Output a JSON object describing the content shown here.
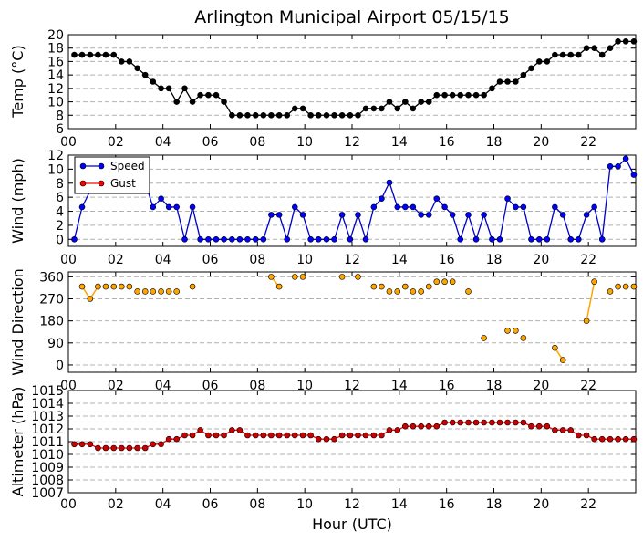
{
  "title": "Arlington Municipal Airport 05/15/15",
  "xlabel": "Hour (UTC)",
  "x_tick_labels": [
    "00",
    "02",
    "04",
    "06",
    "08",
    "10",
    "12",
    "14",
    "16",
    "18",
    "20",
    "22"
  ],
  "colors": {
    "temp": "#000000",
    "speed_line": "#0000cc",
    "speed_marker": "#0000ff",
    "gust_marker": "#ff0000",
    "direction_line": "#ffa500",
    "direction_marker": "#ffa500",
    "altimeter_line": "#ff0000",
    "altimeter_marker": "#cc0000",
    "grid": "#b0b0b0"
  },
  "chart_data": [
    {
      "type": "line",
      "ylabel": "Temp ($^\\circ$C)",
      "ylabel_display": "Temp (°C)",
      "xlim": [
        0,
        24
      ],
      "ylim": [
        6,
        20
      ],
      "yticks": [
        6,
        8,
        10,
        12,
        14,
        16,
        18,
        20
      ],
      "grid": true,
      "series": [
        {
          "x": [
            0.25,
            0.58,
            0.92,
            1.25,
            1.58,
            1.92,
            2.25,
            2.58,
            2.92,
            3.25,
            3.58,
            3.92,
            4.25,
            4.58,
            4.92,
            5.25,
            5.58,
            5.92,
            6.25,
            6.58,
            6.92,
            7.25,
            7.58,
            7.92,
            8.25,
            8.58,
            8.92,
            9.25,
            9.58,
            9.92,
            10.25,
            10.58,
            10.92,
            11.25,
            11.58,
            11.92,
            12.25,
            12.58,
            12.92,
            13.25,
            13.58,
            13.92,
            14.25,
            14.58,
            14.92,
            15.25,
            15.58,
            15.92,
            16.25,
            16.58,
            16.92,
            17.25,
            17.58,
            17.92,
            18.25,
            18.58,
            18.92,
            19.25,
            19.58,
            19.92,
            20.25,
            20.58,
            20.92,
            21.25,
            21.58,
            21.92,
            22.25,
            22.58,
            22.92,
            23.25,
            23.58,
            23.92
          ],
          "values": [
            17,
            17,
            17,
            17,
            17,
            17,
            16,
            16,
            15,
            14,
            13,
            12,
            12,
            10,
            12,
            10,
            11,
            11,
            11,
            10,
            8,
            8,
            8,
            8,
            8,
            8,
            8,
            8,
            9,
            9,
            8,
            8,
            8,
            8,
            8,
            8,
            8,
            9,
            9,
            9,
            10,
            9,
            10,
            9,
            10,
            10,
            11,
            11,
            11,
            11,
            11,
            11,
            11,
            12,
            13,
            13,
            13,
            14,
            15,
            16,
            16,
            17,
            17,
            17,
            17,
            18,
            18,
            17,
            18,
            19,
            19,
            19
          ]
        }
      ]
    },
    {
      "type": "line",
      "ylabel": "Wind (mph)",
      "xlim": [
        0,
        24
      ],
      "ylim": [
        -1,
        12
      ],
      "yticks": [
        0,
        2,
        4,
        6,
        8,
        10,
        12
      ],
      "grid": true,
      "legend": [
        "Speed",
        "Gust"
      ],
      "legend_position": "upper-left",
      "series": [
        {
          "name": "Speed",
          "x": [
            0.25,
            0.58,
            0.92,
            1.25,
            1.58,
            1.92,
            2.25,
            2.58,
            2.92,
            3.25,
            3.58,
            3.92,
            4.25,
            4.58,
            4.92,
            5.25,
            5.58,
            5.92,
            6.25,
            6.58,
            6.92,
            7.25,
            7.58,
            7.92,
            8.25,
            8.58,
            8.92,
            9.25,
            9.58,
            9.92,
            10.25,
            10.58,
            10.92,
            11.25,
            11.58,
            11.92,
            12.25,
            12.58,
            12.92,
            13.25,
            13.58,
            13.92,
            14.25,
            14.58,
            14.92,
            15.25,
            15.58,
            15.92,
            16.25,
            16.58,
            16.92,
            17.25,
            17.58,
            17.92,
            18.25,
            18.58,
            18.92,
            19.25,
            19.58,
            19.92,
            20.25,
            20.58,
            20.92,
            21.25,
            21.58,
            21.92,
            22.25,
            22.58,
            22.92,
            23.25,
            23.58,
            23.92
          ],
          "values": [
            0,
            4.6,
            6.9,
            6.9,
            6.9,
            8.1,
            8.1,
            8.1,
            8.1,
            8.1,
            4.6,
            5.8,
            4.6,
            4.6,
            0,
            4.6,
            0,
            0,
            0,
            0,
            0,
            0,
            0,
            0,
            0,
            3.5,
            3.5,
            0,
            4.6,
            3.5,
            0,
            0,
            0,
            0,
            3.5,
            0,
            3.5,
            0,
            4.6,
            5.8,
            8.1,
            4.6,
            4.6,
            4.6,
            3.5,
            3.5,
            5.8,
            4.6,
            3.5,
            0,
            3.5,
            0,
            3.5,
            0,
            0,
            5.8,
            4.6,
            4.6,
            0,
            0,
            0,
            4.6,
            3.5,
            0,
            0,
            3.5,
            4.6,
            0,
            10.4,
            10.4,
            11.5,
            9.2
          ]
        },
        {
          "name": "Gust",
          "x": [],
          "values": []
        }
      ]
    },
    {
      "type": "scatter",
      "ylabel": "Wind Direction",
      "xlim": [
        0,
        24
      ],
      "ylim": [
        -30,
        380
      ],
      "yticks": [
        0,
        90,
        180,
        270,
        360
      ],
      "grid": true,
      "series": [
        {
          "x": [
            0.58,
            0.92,
            1.25,
            1.58,
            1.92,
            2.25,
            2.58,
            2.92,
            3.25,
            3.58,
            3.92,
            4.25,
            4.58,
            5.25,
            8.58,
            8.92,
            9.58,
            9.92,
            11.58,
            12.25,
            12.92,
            13.25,
            13.58,
            13.92,
            14.25,
            14.58,
            14.92,
            15.25,
            15.58,
            15.92,
            16.25,
            16.92,
            17.58,
            18.58,
            18.92,
            19.25,
            20.58,
            20.92,
            21.92,
            22.25,
            22.92,
            23.25,
            23.58,
            23.92
          ],
          "values": [
            320,
            270,
            320,
            320,
            320,
            320,
            320,
            300,
            300,
            300,
            300,
            300,
            300,
            320,
            360,
            320,
            360,
            360,
            360,
            360,
            320,
            320,
            300,
            300,
            320,
            300,
            300,
            320,
            340,
            340,
            340,
            300,
            110,
            140,
            140,
            110,
            70,
            20,
            180,
            340,
            300,
            320,
            320,
            320
          ],
          "connected_segments": [
            [
              0.58,
              0.92,
              1.25
            ],
            [
              8.58,
              8.92
            ],
            [
              20.58,
              20.92
            ],
            [
              21.92,
              22.25
            ]
          ]
        }
      ]
    },
    {
      "type": "line",
      "ylabel": "Altimeter (hPa)",
      "xlim": [
        0,
        24
      ],
      "ylim": [
        1007,
        1015
      ],
      "yticks": [
        1007,
        1008,
        1009,
        1010,
        1011,
        1012,
        1013,
        1014,
        1015
      ],
      "grid": true,
      "series": [
        {
          "x": [
            0.25,
            0.58,
            0.92,
            1.25,
            1.58,
            1.92,
            2.25,
            2.58,
            2.92,
            3.25,
            3.58,
            3.92,
            4.25,
            4.58,
            4.92,
            5.25,
            5.58,
            5.92,
            6.25,
            6.58,
            6.92,
            7.25,
            7.58,
            7.92,
            8.25,
            8.58,
            8.92,
            9.25,
            9.58,
            9.92,
            10.25,
            10.58,
            10.92,
            11.25,
            11.58,
            11.92,
            12.25,
            12.58,
            12.92,
            13.25,
            13.58,
            13.92,
            14.25,
            14.58,
            14.92,
            15.25,
            15.58,
            15.92,
            16.25,
            16.58,
            16.92,
            17.25,
            17.58,
            17.92,
            18.25,
            18.58,
            18.92,
            19.25,
            19.58,
            19.92,
            20.25,
            20.58,
            20.92,
            21.25,
            21.58,
            21.92,
            22.25,
            22.58,
            22.92,
            23.25,
            23.58,
            23.92
          ],
          "values": [
            1010.8,
            1010.8,
            1010.8,
            1010.5,
            1010.5,
            1010.5,
            1010.5,
            1010.5,
            1010.5,
            1010.5,
            1010.8,
            1010.8,
            1011.2,
            1011.2,
            1011.5,
            1011.5,
            1011.9,
            1011.5,
            1011.5,
            1011.5,
            1011.9,
            1011.9,
            1011.5,
            1011.5,
            1011.5,
            1011.5,
            1011.5,
            1011.5,
            1011.5,
            1011.5,
            1011.5,
            1011.2,
            1011.2,
            1011.2,
            1011.5,
            1011.5,
            1011.5,
            1011.5,
            1011.5,
            1011.5,
            1011.9,
            1011.9,
            1012.2,
            1012.2,
            1012.2,
            1012.2,
            1012.2,
            1012.5,
            1012.5,
            1012.5,
            1012.5,
            1012.5,
            1012.5,
            1012.5,
            1012.5,
            1012.5,
            1012.5,
            1012.5,
            1012.2,
            1012.2,
            1012.2,
            1011.9,
            1011.9,
            1011.9,
            1011.5,
            1011.5,
            1011.2,
            1011.2,
            1011.2,
            1011.2,
            1011.2,
            1011.2
          ]
        }
      ]
    }
  ]
}
